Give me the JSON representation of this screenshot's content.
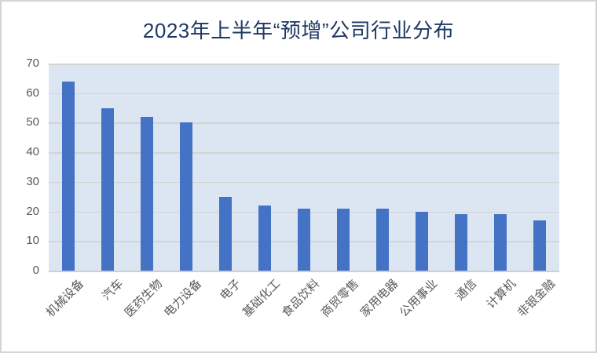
{
  "frame": {
    "background": "#FFFFFF",
    "border_color": "#D5D5D5"
  },
  "chart_data": {
    "type": "bar",
    "title": "2023年上半年“预增”公司行业分布",
    "categories": [
      "机械设备",
      "汽车",
      "医药生物",
      "电力设备",
      "电子",
      "基础化工",
      "食品饮料",
      "商贸零售",
      "家用电器",
      "公用事业",
      "通信",
      "计算机",
      "非银金融"
    ],
    "values": [
      64,
      55,
      52,
      50,
      25,
      22,
      21,
      21,
      21,
      20,
      19,
      19,
      17
    ],
    "xlabel": "",
    "ylabel": "",
    "ylim": [
      0,
      70
    ],
    "yticks": [
      0,
      10,
      20,
      30,
      40,
      50,
      60,
      70
    ],
    "grid": true,
    "legend_position": "none",
    "x_label_rotation_deg": 45,
    "colors": {
      "bar": "#4472C4",
      "plot_background": "#DCE6F2",
      "gridline": "#D3D3D3",
      "axis_line": "#CFCECE",
      "title_text": "#1F3864",
      "axis_text": "#595959"
    }
  }
}
